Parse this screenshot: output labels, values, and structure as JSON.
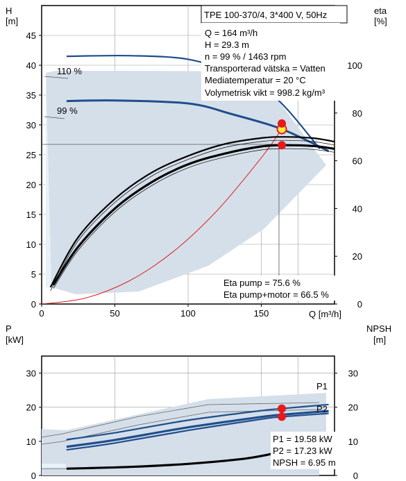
{
  "header": {
    "title": "TPE 100-370/4, 3*400 V, 50Hz"
  },
  "info": {
    "lines": [
      "Q = 164 m³/h",
      "H = 29.3 m",
      "n = 99 % / 1463 rpm",
      "Transporterad vätska = Vatten",
      "Mediatemperatur = 20 °C",
      "Volymetrisk vikt = 998.2 kg/m³"
    ]
  },
  "efficiency_readout": {
    "eta_pump": "Eta pump = 75.6 %",
    "eta_total": "Eta pump+motor = 66.5 %"
  },
  "power_readout": {
    "p1": "P1 = 19.58 kW",
    "p2": "P2 = 17.23 kW",
    "npsh": "NPSH = 6.95 m"
  },
  "colors": {
    "curve": "#1f4e8c",
    "area": "#d5dfea",
    "area_light": "#e8f0f8",
    "system": "#e02020",
    "point": "#e41a1c",
    "duty_fill": "#ffeb3b"
  },
  "chart_data": [
    {
      "type": "line",
      "xlabel": "Q [m³/h]",
      "ylabel": "H\n[m]",
      "ylabel_right": "eta\n[%]",
      "xlim": [
        0,
        200
      ],
      "ylim": [
        0,
        50
      ],
      "y2lim": [
        0,
        125
      ],
      "x_ticks": [
        0,
        50,
        100,
        150
      ],
      "y_ticks": [
        0,
        5,
        10,
        15,
        20,
        25,
        30,
        35,
        40,
        45
      ],
      "y2_ticks": [
        0,
        20,
        40,
        60,
        80,
        100
      ],
      "curve_labels": [
        "110 %",
        "99 %"
      ],
      "series": [
        {
          "name": "110 %",
          "axis": "H",
          "x": [
            17,
            60,
            100,
            130,
            160,
            190
          ],
          "y": [
            41.5,
            41.6,
            41.0,
            38.6,
            34.5,
            26.0
          ]
        },
        {
          "name": "99 %",
          "axis": "H",
          "x": [
            17,
            50,
            100,
            130,
            164,
            196
          ],
          "y": [
            34.0,
            34.1,
            33.6,
            31.8,
            29.3,
            25.6
          ]
        },
        {
          "axis": "eta",
          "x": [
            6,
            25,
            50,
            75,
            100,
            125,
            150,
            165,
            185,
            200
          ],
          "y": [
            7,
            28,
            44,
            55,
            62,
            67,
            69.5,
            70,
            69.5,
            68
          ]
        },
        {
          "axis": "eta",
          "x": [
            8,
            25,
            50,
            75,
            100,
            125,
            150,
            165,
            185,
            200
          ],
          "y": [
            8,
            24,
            40,
            51,
            58.5,
            63,
            66,
            66.5,
            66.2,
            65
          ]
        },
        {
          "axis": "H",
          "x": [
            0,
            30,
            60,
            90,
            120,
            150,
            164
          ],
          "y": [
            0,
            1.0,
            3.9,
            8.8,
            15.7,
            24.5,
            29.3
          ]
        }
      ],
      "duty_point": {
        "Q": 164,
        "H": 29.3
      },
      "eta_points": {
        "Q": 164,
        "eta_pump": 75.6,
        "eta_total": 66.5
      }
    },
    {
      "type": "line",
      "ylabel": "P\n[kW]",
      "ylabel_right": "NPSH\n[m]",
      "xlim": [
        0,
        200
      ],
      "ylim": [
        0,
        35
      ],
      "y_ticks": [
        0,
        10,
        20,
        30
      ],
      "y2_ticks": [
        0,
        10,
        20,
        30
      ],
      "curve_labels": [
        "P1",
        "P2"
      ],
      "series": [
        {
          "name": "P1",
          "x": [
            17,
            50,
            100,
            150,
            164,
            196
          ],
          "y": [
            10.5,
            12.5,
            16.2,
            19.0,
            19.6,
            20.8
          ]
        },
        {
          "name": "P2",
          "x": [
            17,
            50,
            100,
            150,
            164,
            196
          ],
          "y": [
            7.5,
            9.5,
            13.2,
            16.5,
            17.2,
            18.2
          ]
        },
        {
          "axis": "NPSH",
          "x": [
            17,
            60,
            100,
            140,
            164
          ],
          "y": [
            2.0,
            2.5,
            3.4,
            5.0,
            6.95
          ]
        }
      ],
      "duty_points": {
        "Q": 164,
        "P1": 19.58,
        "P2": 17.23,
        "NPSH": 6.95
      }
    }
  ]
}
